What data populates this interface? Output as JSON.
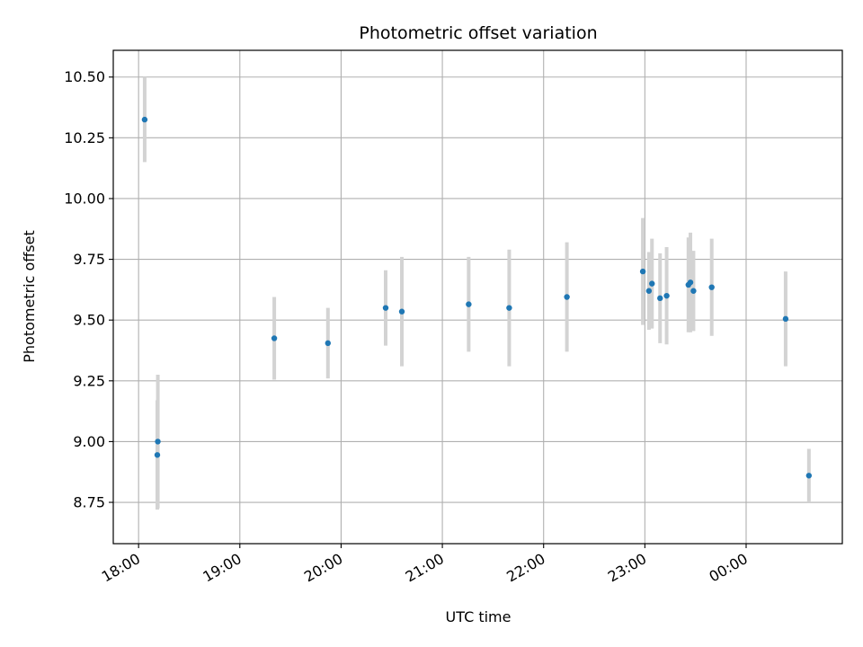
{
  "chart_data": {
    "type": "scatter",
    "title": "Photometric offset variation",
    "xlabel": "UTC time",
    "ylabel": "Photometric offset",
    "grid": true,
    "legend": "none",
    "x_axis": "time (hours since 18:00 UTC span, crossing midnight)",
    "xlim_hours": [
      17.75,
      24.95
    ],
    "ylim": [
      8.58,
      10.61
    ],
    "x_ticks": [
      {
        "label": "18:00",
        "h": 18
      },
      {
        "label": "19:00",
        "h": 19
      },
      {
        "label": "20:00",
        "h": 20
      },
      {
        "label": "21:00",
        "h": 21
      },
      {
        "label": "22:00",
        "h": 22
      },
      {
        "label": "23:00",
        "h": 23
      },
      {
        "label": "00:00",
        "h": 24
      }
    ],
    "y_ticks": [
      8.75,
      9.0,
      9.25,
      9.5,
      9.75,
      10.0,
      10.25,
      10.5
    ],
    "y_tick_labels": [
      "8.75",
      "9.00",
      "9.25",
      "9.50",
      "9.75",
      "10.00",
      "10.25",
      "10.50"
    ],
    "colors": {
      "point": "#1f77b4",
      "errorbar": "#d3d3d3",
      "grid": "#b0b0b0"
    },
    "points": [
      {
        "time": "18:04",
        "h": 18.06,
        "y": 10.325,
        "err": 0.175
      },
      {
        "time": "18:11",
        "h": 18.19,
        "y": 9.0,
        "err": 0.275
      },
      {
        "time": "18:11",
        "h": 18.185,
        "y": 8.945,
        "err": 0.225
      },
      {
        "time": "19:20",
        "h": 19.34,
        "y": 9.425,
        "err": 0.17
      },
      {
        "time": "19:52",
        "h": 19.87,
        "y": 9.405,
        "err": 0.145
      },
      {
        "time": "20:26",
        "h": 20.44,
        "y": 9.55,
        "err": 0.155
      },
      {
        "time": "20:35",
        "h": 20.6,
        "y": 9.535,
        "err": 0.225
      },
      {
        "time": "21:15",
        "h": 21.26,
        "y": 9.565,
        "err": 0.195
      },
      {
        "time": "21:39",
        "h": 21.66,
        "y": 9.55,
        "err": 0.24
      },
      {
        "time": "22:13",
        "h": 22.23,
        "y": 9.595,
        "err": 0.225
      },
      {
        "time": "22:59",
        "h": 22.98,
        "y": 9.7,
        "err": 0.22
      },
      {
        "time": "23:02",
        "h": 23.04,
        "y": 9.62,
        "err": 0.16
      },
      {
        "time": "23:04",
        "h": 23.07,
        "y": 9.65,
        "err": 0.185
      },
      {
        "time": "23:09",
        "h": 23.15,
        "y": 9.59,
        "err": 0.185
      },
      {
        "time": "23:13",
        "h": 23.215,
        "y": 9.6,
        "err": 0.2
      },
      {
        "time": "23:26",
        "h": 23.43,
        "y": 9.645,
        "err": 0.195
      },
      {
        "time": "23:27",
        "h": 23.45,
        "y": 9.655,
        "err": 0.205
      },
      {
        "time": "23:29",
        "h": 23.48,
        "y": 9.62,
        "err": 0.165
      },
      {
        "time": "23:39",
        "h": 23.66,
        "y": 9.635,
        "err": 0.2
      },
      {
        "time": "00:23",
        "h": 24.39,
        "y": 9.505,
        "err": 0.195
      },
      {
        "time": "00:37",
        "h": 24.62,
        "y": 8.86,
        "err": 0.11
      }
    ]
  }
}
